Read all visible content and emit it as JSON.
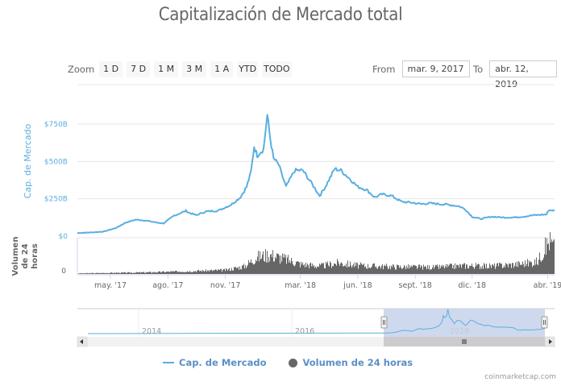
{
  "title": "Capitalización de Mercado total",
  "range_selector": {
    "label": "Zoom",
    "buttons": [
      "1 D",
      "7 D",
      "1 M",
      "3 M",
      "1 A",
      "YTD",
      "TODO"
    ]
  },
  "range_input": {
    "from_label": "From",
    "from_value": "mar. 9, 2017",
    "to_label": "To",
    "to_value": "abr. 12, 2019"
  },
  "legend": {
    "items": [
      {
        "label": "Cap. de Mercado",
        "symbol": "line",
        "color": "#5aaee0"
      },
      {
        "label": "Volumen de 24 horas",
        "symbol": "circle",
        "color": "#666666"
      }
    ]
  },
  "credit": "coinmarketcap.com",
  "colors": {
    "market_cap_line": "#5aaee0",
    "volume_bars": "#666666",
    "navigator_mask": "#c5d2ea",
    "axis_title": "#5aaee0"
  },
  "chart_data": {
    "type": "line",
    "title": "Capitalización de Mercado total",
    "xlabel": "",
    "ylabel": "Cap. de Mercado",
    "ylabel_secondary": "Volumen de 24 horas",
    "y_ticks": [
      "$0",
      "$250B",
      "$500B",
      "$750B"
    ],
    "y_tick_values": [
      0,
      250,
      500,
      750
    ],
    "volume_y_ticks": [
      "0"
    ],
    "ylim": [
      0,
      870
    ],
    "x_ticks": [
      "may. '17",
      "ago. '17",
      "nov. '17",
      "mar. '18",
      "jun. '18",
      "sept. '18",
      "dic. '18",
      "abr. '19"
    ],
    "x_range": [
      "2017-03-09",
      "2019-04-12"
    ],
    "grid": true,
    "legend_position": "bottom",
    "series": [
      {
        "name": "Cap. de Mercado",
        "unit": "billion USD",
        "x": [
          "2017-03-09",
          "2017-04-01",
          "2017-04-20",
          "2017-05-10",
          "2017-05-25",
          "2017-06-10",
          "2017-06-25",
          "2017-07-15",
          "2017-07-25",
          "2017-08-10",
          "2017-08-30",
          "2017-09-02",
          "2017-09-15",
          "2017-10-01",
          "2017-10-20",
          "2017-11-10",
          "2017-11-25",
          "2017-12-05",
          "2017-12-12",
          "2017-12-17",
          "2017-12-22",
          "2017-12-26",
          "2018-01-01",
          "2018-01-07",
          "2018-01-12",
          "2018-01-17",
          "2018-01-25",
          "2018-02-06",
          "2018-02-20",
          "2018-03-05",
          "2018-03-18",
          "2018-04-01",
          "2018-04-10",
          "2018-04-25",
          "2018-05-05",
          "2018-05-20",
          "2018-06-01",
          "2018-06-15",
          "2018-06-28",
          "2018-07-10",
          "2018-07-25",
          "2018-08-10",
          "2018-08-25",
          "2018-09-10",
          "2018-09-25",
          "2018-10-10",
          "2018-10-25",
          "2018-11-10",
          "2018-11-20",
          "2018-12-01",
          "2018-12-15",
          "2019-01-01",
          "2019-01-20",
          "2019-02-05",
          "2019-02-20",
          "2019-03-10",
          "2019-03-30",
          "2019-04-03",
          "2019-04-12"
        ],
        "values": [
          21,
          25,
          30,
          55,
          90,
          110,
          105,
          90,
          85,
          135,
          170,
          160,
          140,
          165,
          170,
          210,
          260,
          330,
          430,
          600,
          540,
          560,
          580,
          810,
          650,
          520,
          480,
          330,
          440,
          440,
          360,
          270,
          330,
          450,
          440,
          380,
          330,
          310,
          260,
          280,
          270,
          230,
          225,
          215,
          220,
          215,
          210,
          200,
          180,
          130,
          115,
          130,
          125,
          125,
          130,
          140,
          145,
          175,
          170
        ]
      },
      {
        "name": "Volumen de 24 horas",
        "unit": "billion USD",
        "x": [
          "2017-03-09",
          "2017-05-01",
          "2017-07-01",
          "2017-09-01",
          "2017-11-01",
          "2017-12-01",
          "2017-12-20",
          "2018-01-10",
          "2018-02-01",
          "2018-03-01",
          "2018-04-01",
          "2018-05-01",
          "2018-06-01",
          "2018-08-01",
          "2018-10-01",
          "2018-11-20",
          "2019-01-01",
          "2019-02-15",
          "2019-03-15",
          "2019-04-03",
          "2019-04-12"
        ],
        "values": [
          1,
          2,
          3,
          5,
          7,
          14,
          30,
          35,
          28,
          18,
          14,
          20,
          15,
          13,
          12,
          15,
          14,
          18,
          22,
          60,
          45
        ]
      }
    ],
    "navigator": {
      "x_ticks": [
        "2014",
        "2016",
        "2018"
      ],
      "selected_range": [
        "2017-03-09",
        "2019-04-12"
      ]
    }
  }
}
